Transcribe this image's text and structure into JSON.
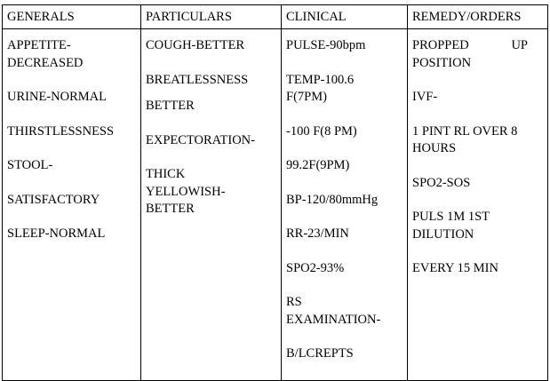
{
  "headers": [
    "GENERALS",
    "PARTICULARS",
    "CLINICAL",
    "REMEDY/ORDERS"
  ],
  "generals": [
    "APPETITE-DECREASED",
    "URINE-NORMAL",
    "THIRSTLESSNESS",
    "STOOL-",
    "SATISFACTORY",
    "SLEEP-NORMAL"
  ],
  "particulars": [
    "COUGH-BETTER",
    "BREATLESSNESS",
    "BETTER",
    "EXPECTORATION-",
    "THICK YELLOWISH-BETTER"
  ],
  "clinical": [
    "PULSE-90bpm",
    "TEMP-100.6 F(7PM)",
    "-100 F(8 PM)",
    "99.2F(9PM)",
    "BP-120/80mmHg",
    "RR-23/MIN",
    "SPO2-93%",
    "RS EXAMINATION-",
    "B/LCREPTS"
  ],
  "remedy": [
    "PROPPED UP POSITION",
    "IVF-",
    "1 PINT RL OVER 8 HOURS",
    "SPO2-SOS",
    "PULS 1M 1ST DILUTION",
    "EVERY 15 MIN"
  ]
}
